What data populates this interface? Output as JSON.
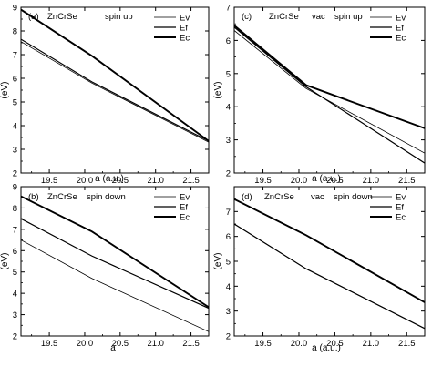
{
  "chart_data": [
    {
      "type": "line",
      "panel_label": "(a)",
      "annotation": [
        "ZnCrSe",
        "spin up"
      ],
      "xlabel": "a (a.u.)",
      "ylabel": "(eV)",
      "xlim": [
        19.1,
        21.75
      ],
      "ylim": [
        2,
        9
      ],
      "xticks": [
        "19.5",
        "20.0",
        "20.5",
        "21.0",
        "21.5"
      ],
      "yticks": [
        "2",
        "3",
        "4",
        "5",
        "6",
        "7",
        "8",
        "9"
      ],
      "legend_position": "top-right",
      "series": [
        {
          "name": "Ev",
          "x": [
            19.1,
            20.1,
            21.75
          ],
          "y": [
            7.55,
            5.8,
            3.3
          ],
          "width": 0.8
        },
        {
          "name": "Ef",
          "x": [
            19.1,
            20.1,
            21.75
          ],
          "y": [
            7.65,
            5.85,
            3.35
          ],
          "width": 1.2
        },
        {
          "name": "Ec",
          "x": [
            19.1,
            20.1,
            21.75
          ],
          "y": [
            8.9,
            6.95,
            3.35
          ],
          "width": 1.9
        }
      ]
    },
    {
      "type": "line",
      "panel_label": "(c)",
      "annotation": [
        "ZnCrSe",
        "vac",
        "spin up"
      ],
      "xlabel": "a (a.u.)",
      "ylabel": "(eV)",
      "xlim": [
        19.1,
        21.75
      ],
      "ylim": [
        2,
        7
      ],
      "xticks": [
        "19.5",
        "20.0",
        "20.5",
        "21.0",
        "21.5"
      ],
      "yticks": [
        "2",
        "3",
        "4",
        "5",
        "6",
        "7"
      ],
      "legend_position": "top-right",
      "series": [
        {
          "name": "Ev",
          "x": [
            19.1,
            20.1,
            21.75
          ],
          "y": [
            6.3,
            4.55,
            2.6
          ],
          "width": 0.8
        },
        {
          "name": "Ef",
          "x": [
            19.1,
            20.1,
            21.75
          ],
          "y": [
            6.4,
            4.6,
            2.3
          ],
          "width": 1.2
        },
        {
          "name": "Ec",
          "x": [
            19.1,
            20.1,
            21.75
          ],
          "y": [
            6.45,
            4.65,
            3.35
          ],
          "width": 1.9
        }
      ]
    },
    {
      "type": "line",
      "panel_label": "(b)",
      "annotation": [
        "ZnCrSe",
        "spin down"
      ],
      "xlabel": "a",
      "ylabel": "(eV)",
      "xlim": [
        19.1,
        21.75
      ],
      "ylim": [
        2,
        9
      ],
      "xticks": [
        "19.5",
        "20.0",
        "20.5",
        "21.0",
        "21.5"
      ],
      "yticks": [
        "2",
        "3",
        "4",
        "5",
        "6",
        "7",
        "8",
        "9"
      ],
      "legend_position": "top-right",
      "series": [
        {
          "name": "Ev",
          "x": [
            19.1,
            20.1,
            21.75
          ],
          "y": [
            6.5,
            4.7,
            2.2
          ],
          "width": 0.8
        },
        {
          "name": "Ef",
          "x": [
            19.1,
            20.1,
            21.75
          ],
          "y": [
            7.5,
            5.75,
            3.3
          ],
          "width": 1.2
        },
        {
          "name": "Ec",
          "x": [
            19.1,
            20.1,
            21.75
          ],
          "y": [
            8.55,
            6.9,
            3.35
          ],
          "width": 1.9
        }
      ]
    },
    {
      "type": "line",
      "panel_label": "(d)",
      "annotation": [
        "ZnCrSe",
        "vac",
        "spin down"
      ],
      "xlabel": "a (a.u.)",
      "ylabel": "(eV)",
      "xlim": [
        19.1,
        21.75
      ],
      "ylim": [
        2,
        8
      ],
      "xticks": [
        "19.5",
        "20.0",
        "20.5",
        "21.0",
        "21.5"
      ],
      "yticks": [
        "2",
        "3",
        "4",
        "5",
        "6",
        "7"
      ],
      "legend_position": "top-right",
      "series": [
        {
          "name": "Ev",
          "x": [
            19.1,
            20.1,
            21.75
          ],
          "y": [
            6.5,
            4.7,
            2.3
          ],
          "width": 0.8
        },
        {
          "name": "Ef",
          "x": [
            19.1,
            20.1,
            21.75
          ],
          "y": [
            6.5,
            4.7,
            2.3
          ],
          "width": 1.2
        },
        {
          "name": "Ec",
          "x": [
            19.1,
            20.1,
            21.75
          ],
          "y": [
            7.5,
            6.05,
            3.35
          ],
          "width": 1.9
        }
      ]
    }
  ]
}
